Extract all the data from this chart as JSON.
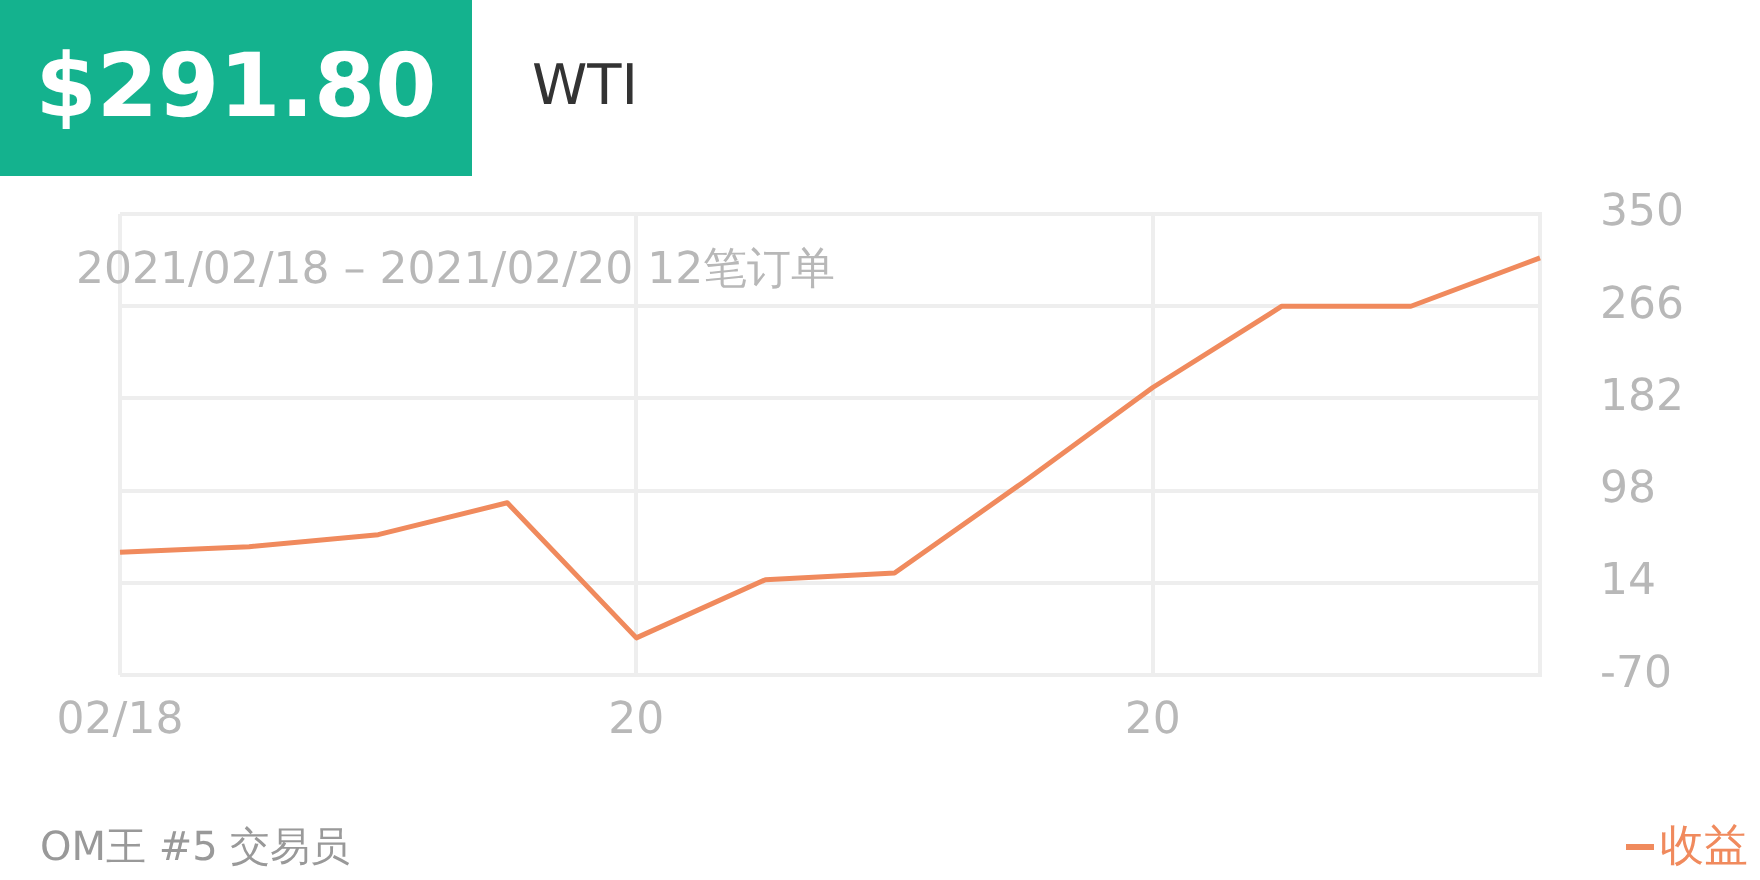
{
  "chart_data": {
    "type": "line",
    "title": "$291.80",
    "subtitle": "WTI",
    "annotations": [
      "2021/02/18 – 2021/02/20 12笔订单",
      "OM王 #5 交易员"
    ],
    "categories": [
      "02/18",
      null,
      null,
      null,
      "20",
      null,
      null,
      null,
      "20",
      null,
      null,
      null
    ],
    "series": [
      {
        "name": "收益",
        "color": "#f08a5d",
        "values": [
          42,
          47,
          58,
          87,
          -36,
          17,
          23,
          106,
          192,
          266,
          266,
          310
        ]
      }
    ],
    "ylim": [
      -70,
      350
    ],
    "yticks": [
      -70,
      14,
      98,
      182,
      266,
      350
    ],
    "grid": true,
    "legend": "bottom right",
    "marker": "none",
    "line_style": "solid"
  }
}
